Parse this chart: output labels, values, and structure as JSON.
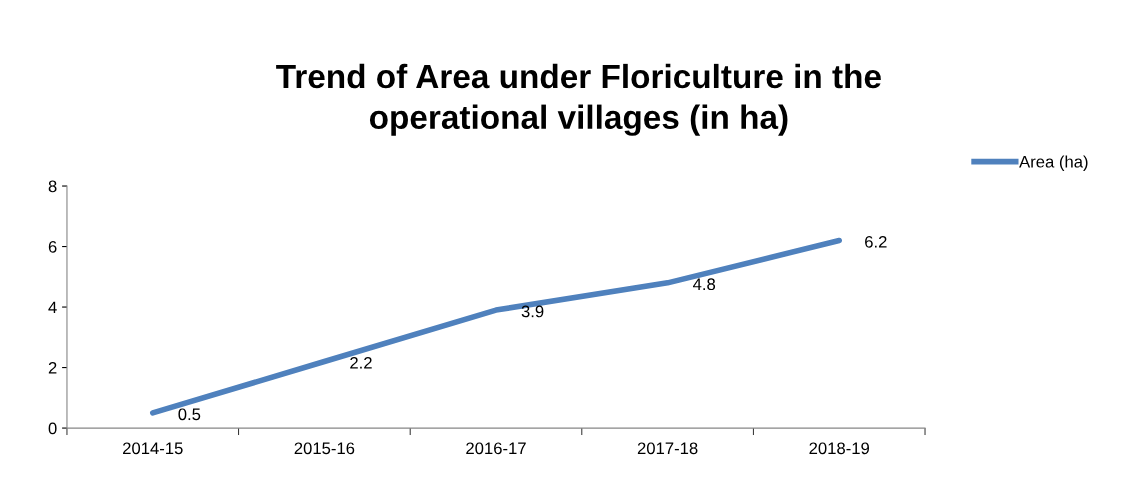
{
  "chart_data": {
    "type": "line",
    "title": "Trend of Area under Floriculture in the\noperational villages (in ha)",
    "categories": [
      "2014-15",
      "2015-16",
      "2016-17",
      "2017-18",
      "2018-19"
    ],
    "series": [
      {
        "name": "Area (ha)",
        "color": "#4f81bd",
        "values": [
          0.5,
          2.2,
          3.9,
          4.8,
          6.2
        ]
      }
    ],
    "ylim": [
      0,
      8
    ],
    "yticks": [
      0,
      2,
      4,
      6,
      8
    ],
    "grid": false,
    "legend": "right",
    "data_labels": true,
    "marker": "none",
    "line_style": "solid"
  }
}
